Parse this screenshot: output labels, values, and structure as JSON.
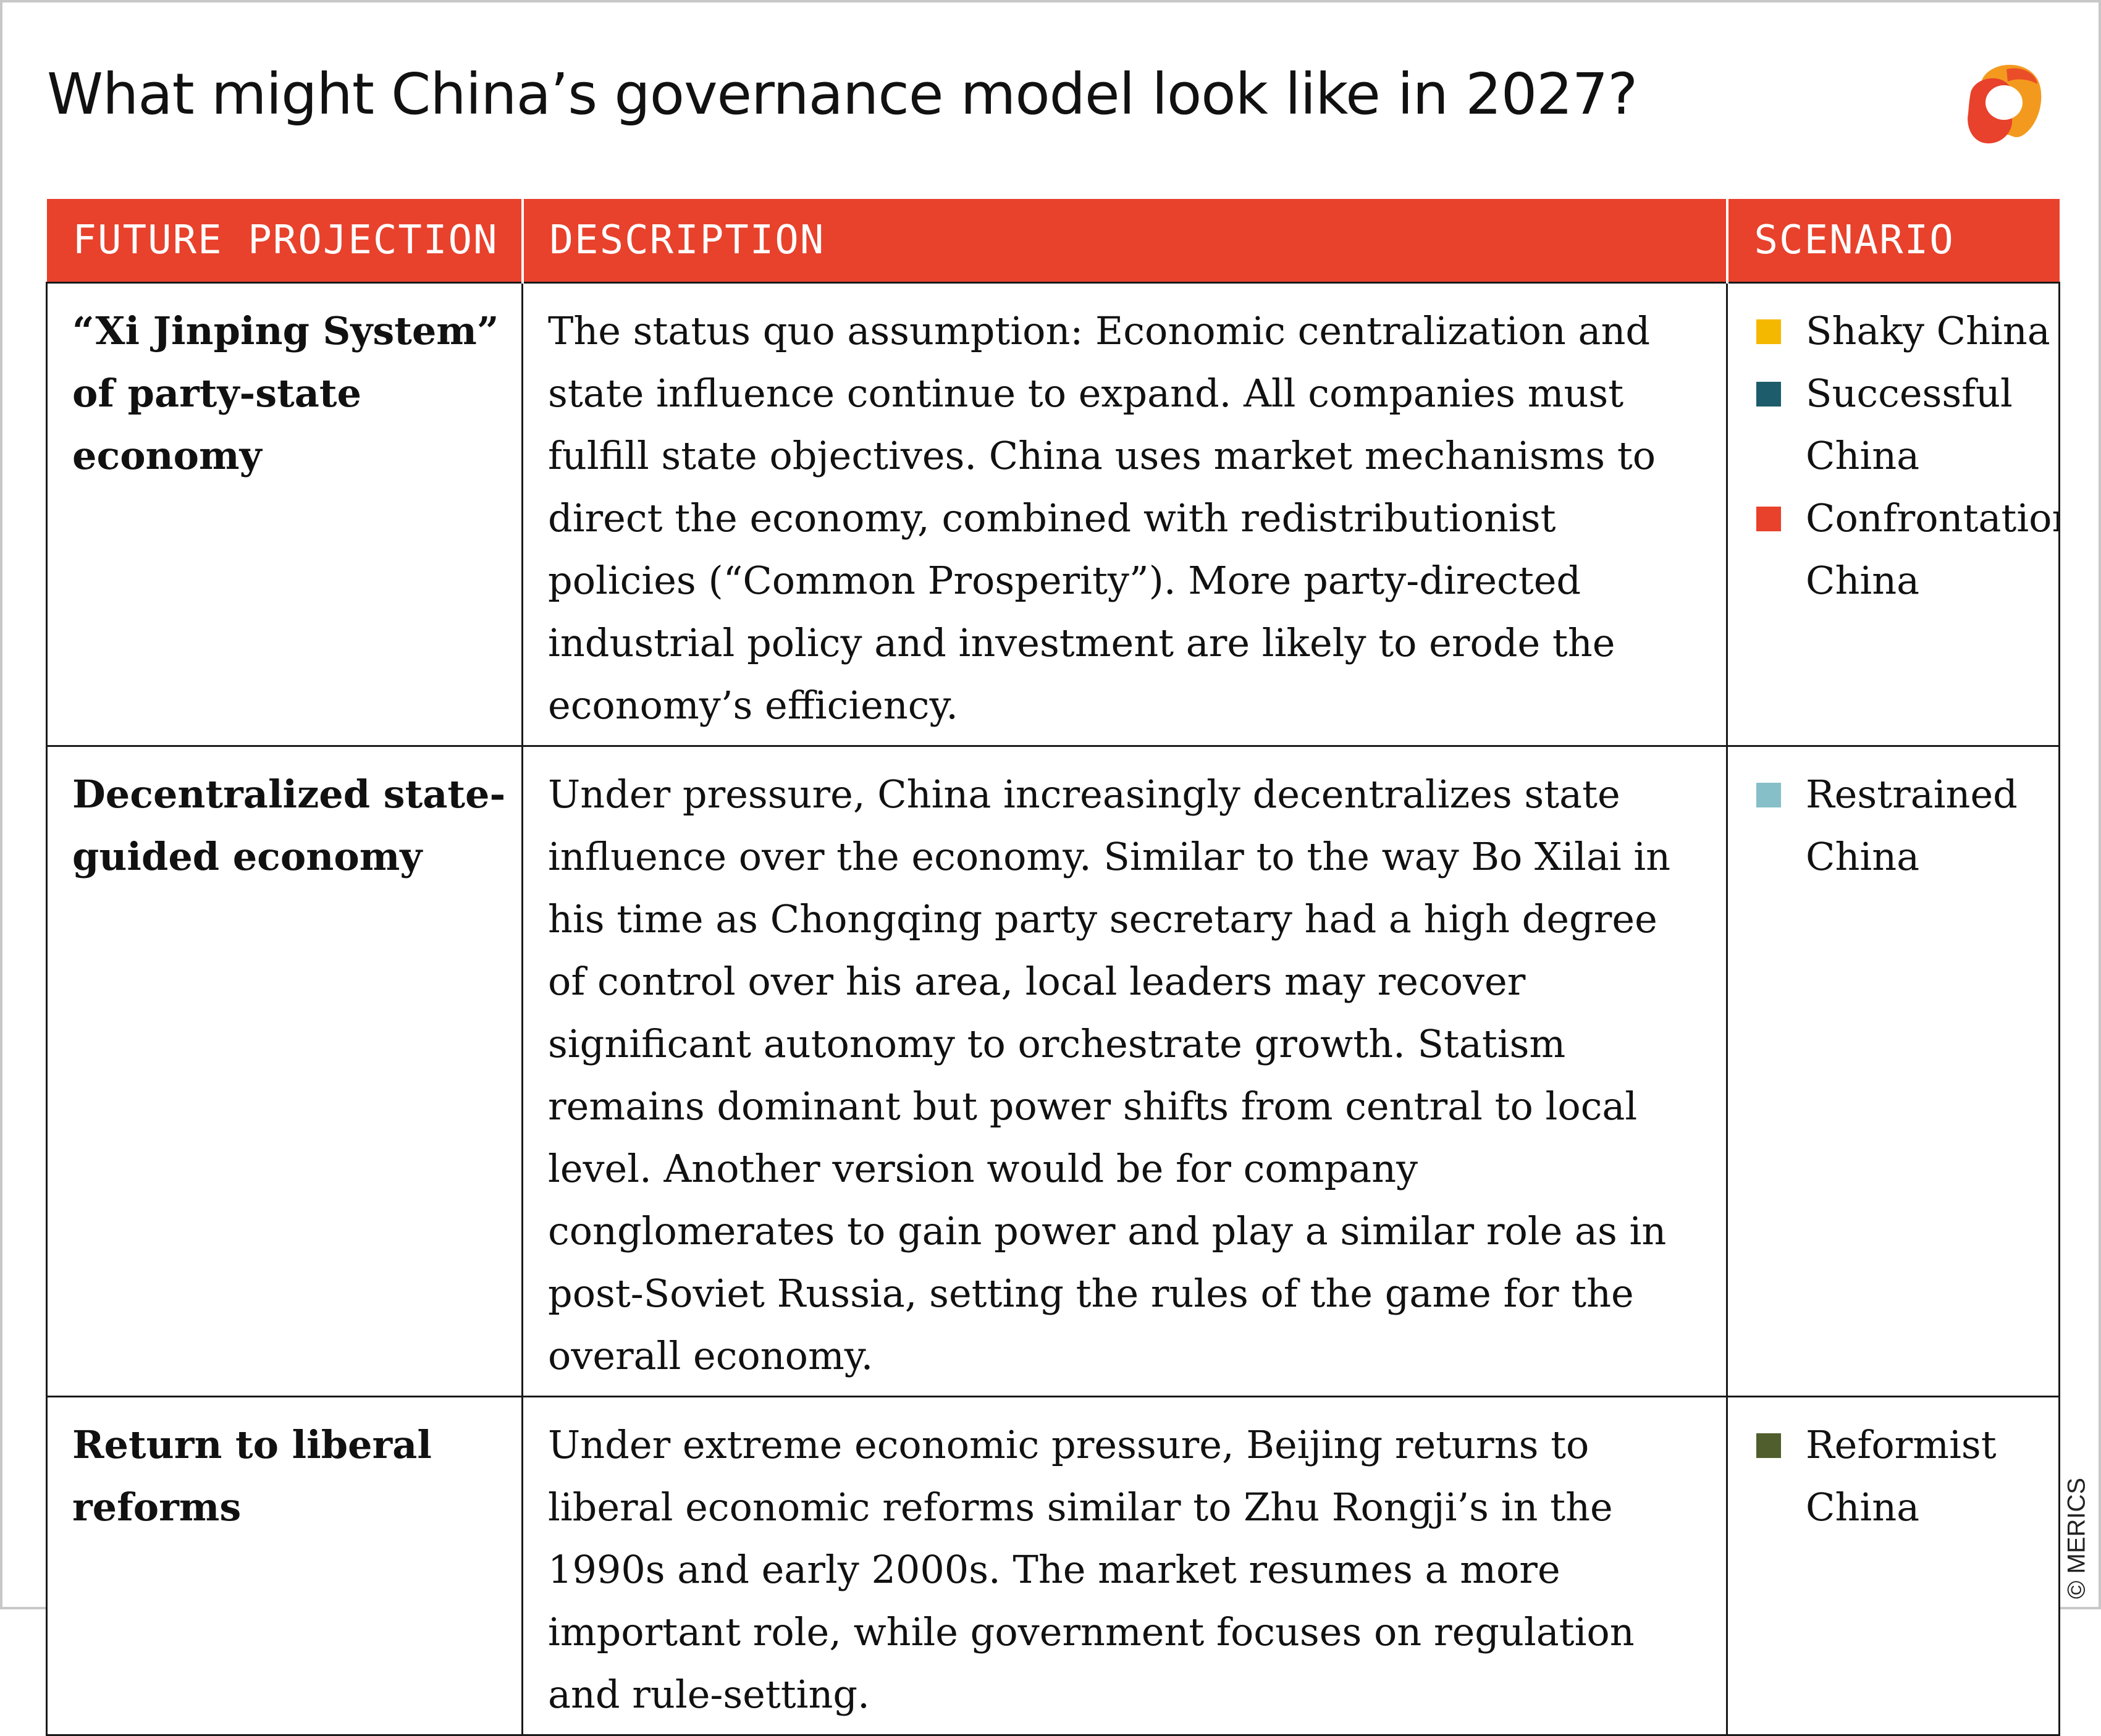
{
  "title": "What might China’s governance model look like in 2027?",
  "headers": {
    "projection": "FUTURE PROJECTION",
    "description": "DESCRIPTION",
    "scenario": "SCENARIO"
  },
  "rows": [
    {
      "projection": "“Xi Jinping System” of party-state economy",
      "description": "The status quo assumption: Economic centralization and state influence continue to expand. All companies must fulfill state objectives. China uses market mechanisms to direct the economy, combined with redistributionist policies (“Common Prosperity”). More party-directed industrial policy and investment are likely to erode the economy’s efficiency.",
      "scenarios": [
        {
          "label": "Shaky China",
          "color": "#f5b800"
        },
        {
          "label": "Successful China",
          "color": "#1d5c6b"
        },
        {
          "label": "Confrontational China",
          "color": "#e8412c"
        }
      ]
    },
    {
      "projection": "Decentralized state-guided economy",
      "description": "Under pressure, China increasingly decentralizes state influence over the economy. Similar to the way Bo Xilai in his time as Chongqing party secretary had a high degree of control over his area, local leaders may recover significant autonomy to orchestrate growth. Statism remains dominant but power shifts from central to local level. Another version would be for company conglomerates to gain power and play a similar role as in post-Soviet Russia, setting the rules of the game for the overall economy.",
      "scenarios": [
        {
          "label": "Restrained China",
          "color": "#86bfc7"
        }
      ]
    },
    {
      "projection": "Return to liberal reforms",
      "description": "Under extreme economic pressure, Beijing returns to liberal economic reforms similar to Zhu Rongji’s in the 1990s and early 2000s. The market resumes a more important role, while government focuses on regulation and rule-setting.",
      "scenarios": [
        {
          "label": "Reformist China",
          "color": "#4f5e2c"
        }
      ]
    }
  ],
  "copyright": "© MERICS"
}
